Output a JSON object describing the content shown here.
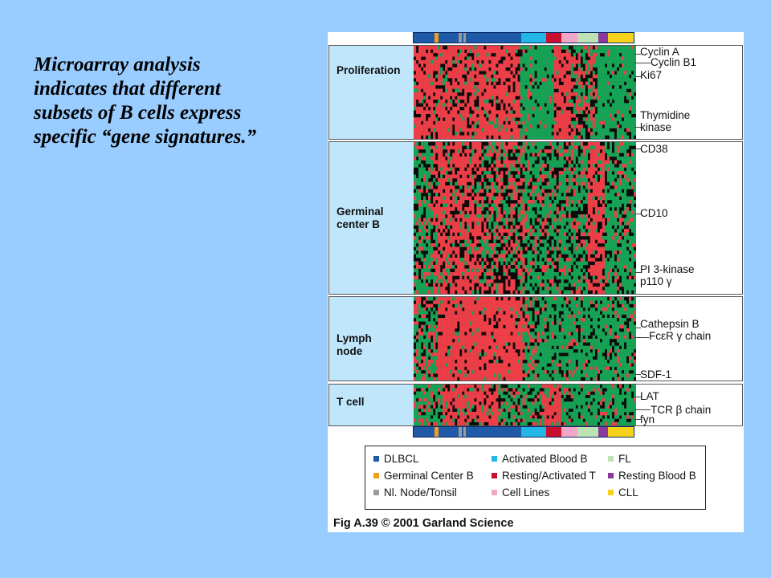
{
  "caption": "Microarray analysis\nindicates that different\nsubsets of B cells express\nspecific “gene signatures.”",
  "colors": {
    "red": "#ee3f48",
    "green": "#17a356",
    "black": "#0b0b0b"
  },
  "color_bar_segments": [
    {
      "color": "#1f5aa8",
      "weight": 24
    },
    {
      "color": "#f39c1f",
      "weight": 5
    },
    {
      "color": "#1f5aa8",
      "weight": 23
    },
    {
      "color": "#9a9a9a",
      "weight": 3
    },
    {
      "color": "#1f5aa8",
      "weight": 2
    },
    {
      "color": "#9a9a9a",
      "weight": 3
    },
    {
      "color": "#1f5aa8",
      "weight": 64
    },
    {
      "color": "#22b7e6",
      "weight": 28
    },
    {
      "color": "#c8102e",
      "weight": 18
    },
    {
      "color": "#f2a6c8",
      "weight": 18
    },
    {
      "color": "#bfe2b4",
      "weight": 24
    },
    {
      "color": "#8a3a9a",
      "weight": 11
    },
    {
      "color": "#f7d21a",
      "weight": 30
    }
  ],
  "panels": [
    {
      "label": "Proliferation",
      "genes": [
        "Cyclin A",
        "Cyclin B1",
        "Ki67",
        "Thymidine\nkinase"
      ]
    },
    {
      "label": "Germinal\ncenter B",
      "genes": [
        "CD38",
        "CD10",
        "PI 3-kinase\np110 γ"
      ]
    },
    {
      "label": "Lymph\nnode",
      "genes": [
        "Cathepsin B",
        "FcεR γ chain",
        "SDF-1"
      ]
    },
    {
      "label": "T cell",
      "genes": [
        "LAT",
        "TCR β chain",
        "fyn"
      ]
    }
  ],
  "legend": [
    {
      "label": "DLBCL",
      "color": "#1f5aa8"
    },
    {
      "label": "Activated Blood B",
      "color": "#22b7e6"
    },
    {
      "label": "FL",
      "color": "#bfe2b4"
    },
    {
      "label": "Germinal Center B",
      "color": "#f39c1f"
    },
    {
      "label": "Resting/Activated T",
      "color": "#c8102e"
    },
    {
      "label": "Resting Blood B",
      "color": "#8a3a9a"
    },
    {
      "label": "Nl. Node/Tonsil",
      "color": "#9a9a9a"
    },
    {
      "label": "Cell Lines",
      "color": "#f2a6c8"
    },
    {
      "label": "CLL",
      "color": "#f7d21a"
    }
  ],
  "credit": "Fig A.39  © 2001 Garland Science"
}
